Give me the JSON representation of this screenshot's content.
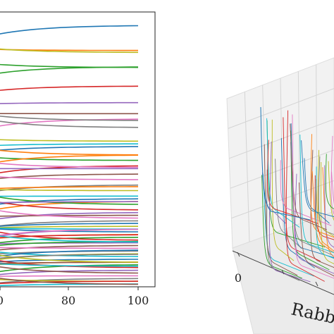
{
  "chart_data": [
    {
      "type": "line",
      "title": "",
      "xlabel": "",
      "ylabel": "",
      "x_ticks": [
        "0",
        "80",
        "100"
      ],
      "xlim": [
        0,
        100
      ],
      "ylim": [
        0,
        100
      ],
      "series_count": 70,
      "series_end_levels": [
        95,
        86,
        80,
        73,
        67,
        63,
        61,
        58,
        53,
        52,
        51,
        48,
        46,
        44,
        43,
        41,
        39,
        37,
        35,
        33,
        32,
        31,
        30,
        28,
        27,
        26,
        25,
        24,
        22,
        21,
        20,
        19,
        18,
        17,
        16,
        15,
        14,
        13,
        12,
        11,
        10,
        9,
        8,
        7,
        6,
        5,
        4,
        3,
        2,
        1
      ]
    },
    {
      "type": "line",
      "projection": "3d",
      "title": "",
      "xlabel": "Rabb",
      "x_ticks": [
        "0"
      ],
      "series_count": 40
    }
  ]
}
